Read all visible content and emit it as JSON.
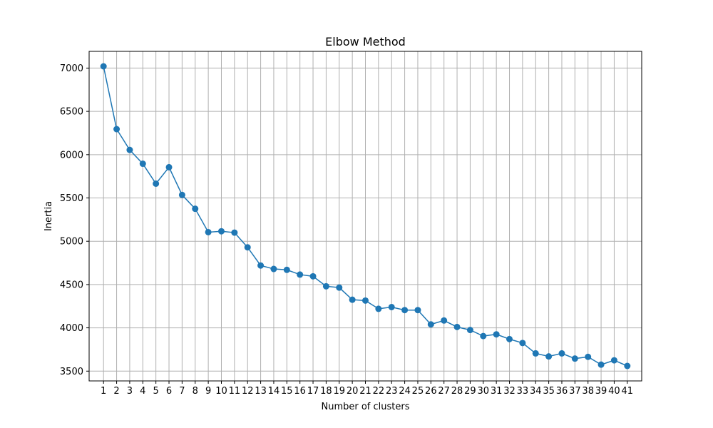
{
  "chart_data": {
    "type": "line",
    "title": "Elbow Method",
    "xlabel": "Number of clusters",
    "ylabel": "Inertia",
    "x": [
      1,
      2,
      3,
      4,
      5,
      6,
      7,
      8,
      9,
      10,
      11,
      12,
      13,
      14,
      15,
      16,
      17,
      18,
      19,
      20,
      21,
      22,
      23,
      24,
      25,
      26,
      27,
      28,
      29,
      30,
      31,
      32,
      33,
      34,
      35,
      36,
      37,
      38,
      39,
      40,
      41
    ],
    "series": [
      {
        "values": [
          7020,
          6295,
          6055,
          5895,
          5665,
          5855,
          5535,
          5375,
          5105,
          5115,
          5100,
          4930,
          4720,
          4680,
          4670,
          4615,
          4595,
          4480,
          4465,
          4325,
          4315,
          4220,
          4240,
          4205,
          4205,
          4040,
          4085,
          4010,
          3975,
          3905,
          3925,
          3870,
          3825,
          3705,
          3670,
          3705,
          3645,
          3665,
          3575,
          3625,
          3560
        ],
        "color": "#1f77b4",
        "marker": "circle"
      }
    ],
    "xticks": [
      1,
      2,
      3,
      4,
      5,
      6,
      7,
      8,
      9,
      10,
      11,
      12,
      13,
      14,
      15,
      16,
      17,
      18,
      19,
      20,
      21,
      22,
      23,
      24,
      25,
      26,
      27,
      28,
      29,
      30,
      31,
      32,
      33,
      34,
      35,
      36,
      37,
      38,
      39,
      40,
      41
    ],
    "yticks": [
      3500,
      4000,
      4500,
      5000,
      5500,
      6000,
      6500,
      7000
    ],
    "xlim": [
      -0.1,
      42.1
    ],
    "ylim": [
      3387,
      7193
    ],
    "grid": true,
    "legend": "none"
  }
}
